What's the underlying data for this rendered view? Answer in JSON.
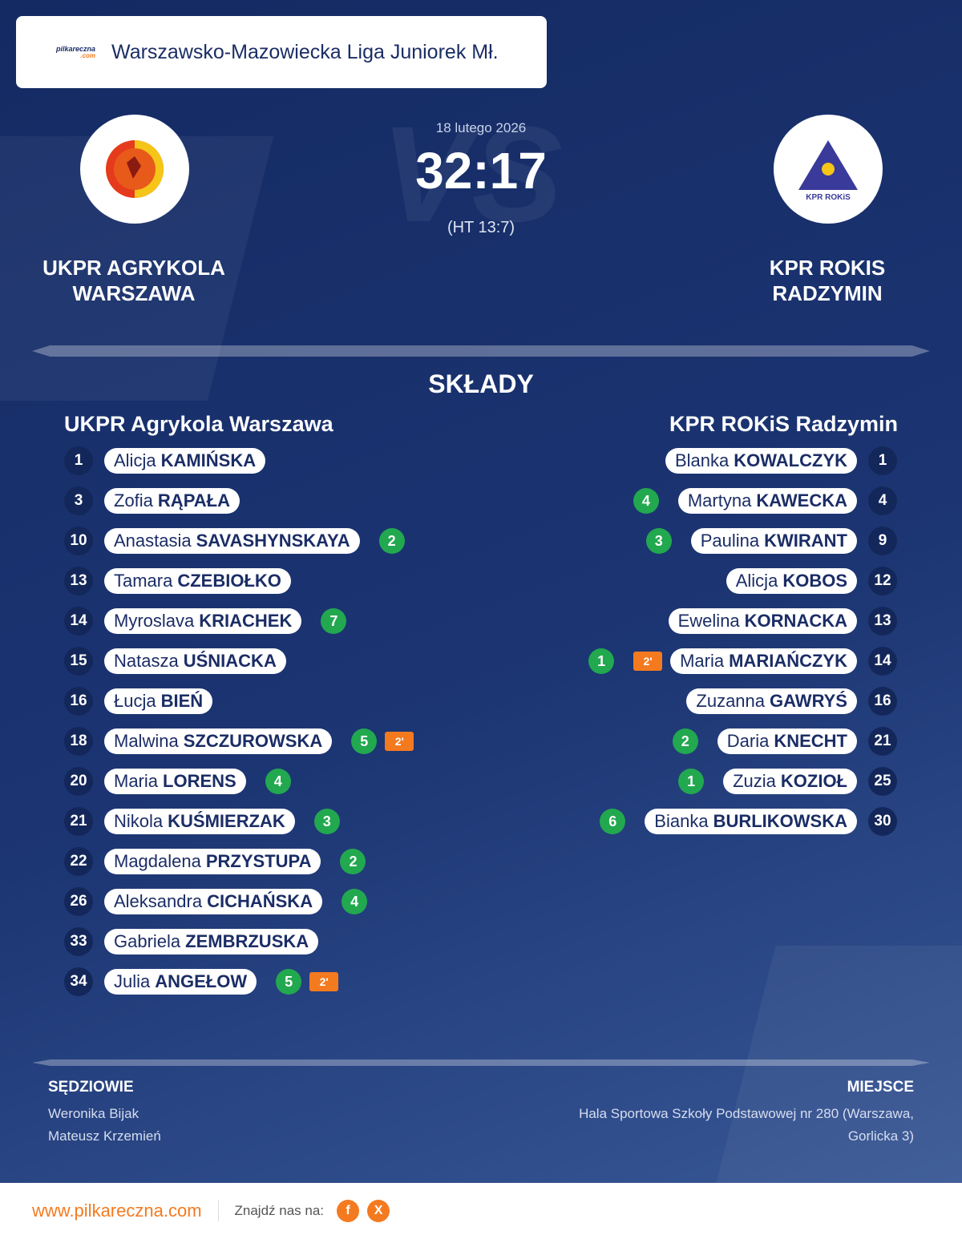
{
  "header": {
    "logo_text": "pilkareczna",
    "logo_sub": ".com",
    "title": "Warszawsko-Mazowiecka Liga Juniorek Mł."
  },
  "match": {
    "vs": "VS",
    "date": "18 lutego 2026",
    "score": "32:17",
    "halftime": "(HT 13:7)",
    "home": {
      "name_lines": [
        "UKPR AGRYKOLA",
        "WARSZAWA"
      ]
    },
    "away": {
      "name_lines": [
        "KPR ROKIS",
        "RADZYMIN"
      ],
      "logo_text": "KPR ROKiS"
    }
  },
  "lineups": {
    "title": "SKŁADY",
    "home": {
      "team": "UKPR Agrykola Warszawa",
      "players": [
        {
          "number": 1,
          "first": "Alicja",
          "last": "KAMIŃSKA"
        },
        {
          "number": 3,
          "first": "Zofia",
          "last": "RĄPAŁA"
        },
        {
          "number": 10,
          "first": "Anastasia",
          "last": "SAVASHYNSKAYA",
          "goals": 2
        },
        {
          "number": 13,
          "first": "Tamara",
          "last": "CZEBIOŁKO"
        },
        {
          "number": 14,
          "first": "Myroslava",
          "last": "KRIACHEK",
          "goals": 7
        },
        {
          "number": 15,
          "first": "Natasza",
          "last": "UŚNIACKA"
        },
        {
          "number": 16,
          "first": "Łucja",
          "last": "BIEŃ"
        },
        {
          "number": 18,
          "first": "Malwina",
          "last": "SZCZUROWSKA",
          "goals": 5,
          "suspension": "2'"
        },
        {
          "number": 20,
          "first": "Maria",
          "last": "LORENS",
          "goals": 4
        },
        {
          "number": 21,
          "first": "Nikola",
          "last": "KUŚMIERZAK",
          "goals": 3
        },
        {
          "number": 22,
          "first": "Magdalena",
          "last": "PRZYSTUPA",
          "goals": 2
        },
        {
          "number": 26,
          "first": "Aleksandra",
          "last": "CICHAŃSKA",
          "goals": 4
        },
        {
          "number": 33,
          "first": "Gabriela",
          "last": "ZEMBRZUSKA"
        },
        {
          "number": 34,
          "first": "Julia",
          "last": "ANGEŁOW",
          "goals": 5,
          "suspension": "2'"
        }
      ]
    },
    "away": {
      "team": "KPR ROKiS Radzymin",
      "players": [
        {
          "number": 1,
          "first": "Blanka",
          "last": "KOWALCZYK"
        },
        {
          "number": 4,
          "first": "Martyna",
          "last": "KAWECKA",
          "goals": 4
        },
        {
          "number": 9,
          "first": "Paulina",
          "last": "KWIRANT",
          "goals": 3
        },
        {
          "number": 12,
          "first": "Alicja",
          "last": "KOBOS"
        },
        {
          "number": 13,
          "first": "Ewelina",
          "last": "KORNACKA"
        },
        {
          "number": 14,
          "first": "Maria",
          "last": "MARIAŃCZYK",
          "goals": 1,
          "suspension": "2'"
        },
        {
          "number": 16,
          "first": "Zuzanna",
          "last": "GAWRYŚ"
        },
        {
          "number": 21,
          "first": "Daria",
          "last": "KNECHT",
          "goals": 2
        },
        {
          "number": 25,
          "first": "Zuzia",
          "last": "KOZIOŁ",
          "goals": 1
        },
        {
          "number": 30,
          "first": "Bianka",
          "last": "BURLIKOWSKA",
          "goals": 6
        }
      ]
    }
  },
  "officials": {
    "referees_label": "SĘDZIOWIE",
    "referees": [
      "Weronika Bijak",
      "Mateusz Krzemień"
    ],
    "venue_label": "MIEJSCE",
    "venue": "Hala Sportowa Szkoły Podstawowej nr 280 (Warszawa, Gorlicka 3)"
  },
  "footer": {
    "site": "www.pilkareczna.com",
    "follow": "Znajdź nas na:",
    "social": [
      "f",
      "X"
    ]
  }
}
